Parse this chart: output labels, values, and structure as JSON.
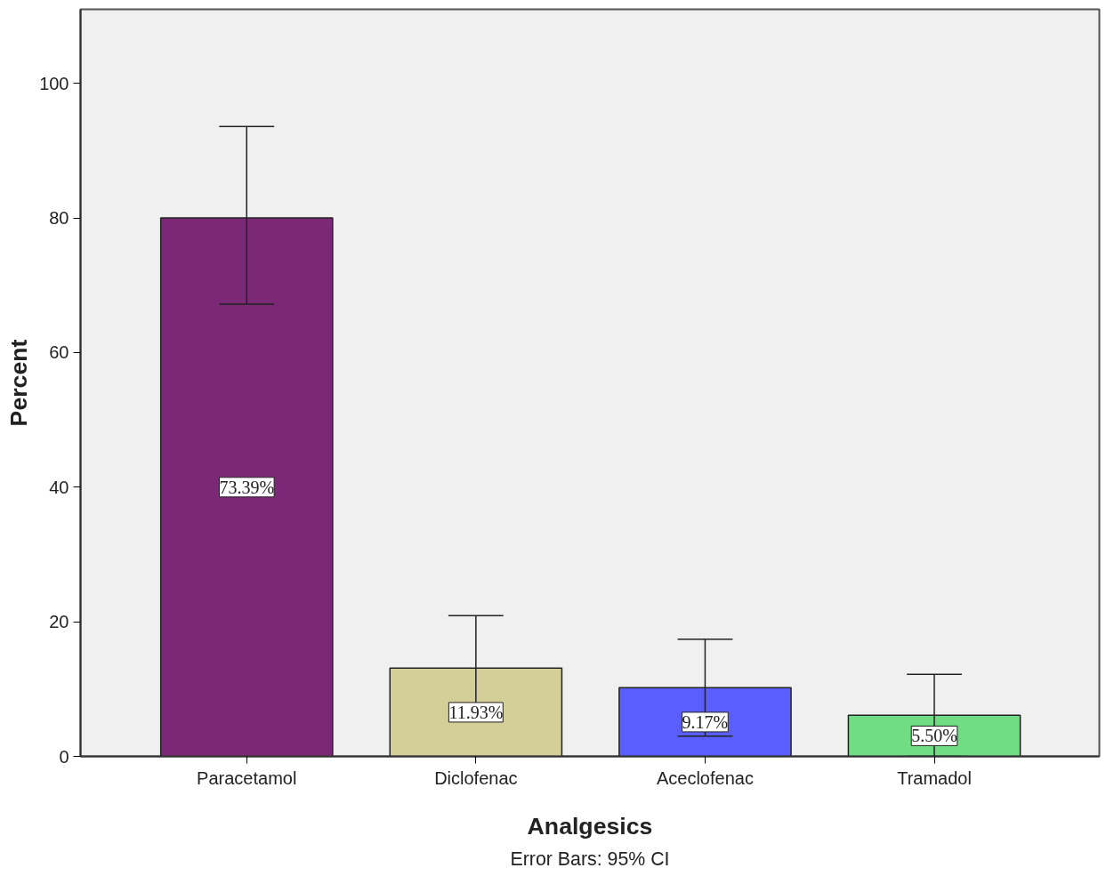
{
  "chart_data": {
    "type": "bar",
    "xlabel": "Analgesics",
    "ylabel": "Percent",
    "categories": [
      "Paracetamol",
      "Diclofenac",
      "Aceclofenac",
      "Tramadol"
    ],
    "values": [
      80.0,
      13.1,
      10.2,
      6.1
    ],
    "colors": [
      "#7b2877",
      "#d4cf98",
      "#5a5eff",
      "#70dc84"
    ],
    "errors": [
      [
        67.2,
        93.6
      ],
      [
        5.3,
        20.9
      ],
      [
        3.0,
        17.4
      ],
      [
        0,
        12.2
      ]
    ],
    "ylim": [
      0,
      111
    ],
    "yticks": [
      0,
      20,
      40,
      60,
      80,
      100
    ],
    "grid": false,
    "annotations": [
      "73.39%",
      "11.93%",
      "9.17%",
      "5.50%",
      "Error Bars: 95% CI"
    ]
  }
}
